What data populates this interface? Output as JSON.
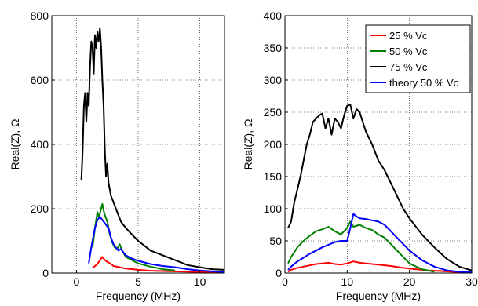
{
  "chart_data": [
    {
      "type": "line",
      "title": "",
      "xlabel": "Frequency (MHz)",
      "ylabel": "Real(Z), Ω",
      "xlim": [
        -2,
        12
      ],
      "ylim": [
        0,
        800
      ],
      "xticks": [
        0,
        5,
        10
      ],
      "yticks": [
        0,
        200,
        400,
        600,
        800
      ],
      "grid": true,
      "series": [
        {
          "color": "#ff0000",
          "x": [
            1.3,
            1.5,
            1.7,
            1.9,
            2.0,
            2.1,
            2.3,
            2.5,
            2.8,
            3.0,
            3.5,
            4.0,
            5.0,
            6.0,
            8.0,
            10.0,
            12.0
          ],
          "y": [
            15,
            22,
            28,
            40,
            45,
            50,
            40,
            35,
            28,
            22,
            18,
            14,
            10,
            7,
            5,
            3,
            2
          ]
        },
        {
          "color": "#008000",
          "x": [
            1.3,
            1.5,
            1.7,
            1.8,
            1.9,
            2.0,
            2.1,
            2.2,
            2.3,
            2.5,
            2.7,
            2.9,
            3.1,
            3.3,
            3.5,
            3.7,
            4.0,
            4.5,
            5.0,
            6.0,
            7.0,
            8.0
          ],
          "y": [
            80,
            140,
            190,
            175,
            185,
            200,
            215,
            195,
            180,
            160,
            120,
            95,
            80,
            75,
            90,
            70,
            50,
            40,
            30,
            20,
            12,
            8
          ]
        },
        {
          "color": "#000000",
          "x": [
            0.4,
            0.5,
            0.6,
            0.7,
            0.8,
            0.9,
            1.0,
            1.1,
            1.2,
            1.3,
            1.4,
            1.5,
            1.6,
            1.7,
            1.8,
            1.9,
            2.0,
            2.1,
            2.2,
            2.3,
            2.4,
            2.5,
            2.6,
            2.8,
            3.0,
            3.2,
            3.4,
            3.6,
            3.8,
            4.0,
            4.5,
            5.0,
            5.5,
            6.0,
            7.0,
            8.0,
            9.0,
            10.0,
            11.0,
            12.0
          ],
          "y": [
            290,
            380,
            520,
            560,
            470,
            560,
            520,
            640,
            720,
            700,
            620,
            740,
            700,
            750,
            720,
            760,
            700,
            600,
            520,
            380,
            300,
            340,
            280,
            240,
            220,
            200,
            180,
            160,
            150,
            140,
            120,
            100,
            85,
            70,
            55,
            40,
            25,
            18,
            12,
            10
          ]
        },
        {
          "color": "#0000ff",
          "x": [
            1.0,
            1.2,
            1.5,
            1.7,
            1.9,
            2.0,
            2.2,
            2.4,
            2.6,
            2.8,
            3.0,
            3.2,
            3.4,
            3.6,
            3.8,
            4.0,
            4.5,
            5.0,
            6.0,
            7.0,
            8.0,
            9.0,
            10.0,
            11.0,
            12.0
          ],
          "y": [
            30,
            80,
            140,
            165,
            175,
            170,
            160,
            150,
            140,
            110,
            90,
            80,
            70,
            75,
            65,
            55,
            45,
            38,
            28,
            22,
            18,
            12,
            8,
            5,
            3
          ]
        }
      ]
    },
    {
      "type": "line",
      "title": "",
      "xlabel": "Frequency (MHz)",
      "ylabel": "Real(Z), Ω",
      "xlim": [
        0,
        30
      ],
      "ylim": [
        0,
        400
      ],
      "xticks": [
        0,
        10,
        20,
        30
      ],
      "yticks": [
        0,
        50,
        100,
        150,
        200,
        250,
        300,
        350,
        400
      ],
      "grid": true,
      "legend": {
        "position": "top-right",
        "entries": [
          "25 % Vc",
          "50 % Vc",
          "75 % Vc",
          "theory 50 % Vc"
        ]
      },
      "series": [
        {
          "name": "25 % Vc",
          "color": "#ff0000",
          "x": [
            0.5,
            1,
            2,
            3,
            4,
            5,
            6,
            7,
            8,
            9,
            10,
            11,
            12,
            13,
            14,
            15,
            17,
            19,
            21,
            23,
            25,
            27,
            29,
            30
          ],
          "y": [
            2,
            5,
            8,
            10,
            12,
            14,
            15,
            16,
            14,
            13,
            15,
            18,
            16,
            15,
            14,
            13,
            11,
            8,
            6,
            4,
            3,
            2,
            1,
            1
          ]
        },
        {
          "name": "50 % Vc",
          "color": "#008000",
          "x": [
            0.5,
            1,
            2,
            3,
            4,
            5,
            6,
            7,
            8,
            9,
            10,
            10.5,
            11,
            12,
            13,
            14,
            15,
            16,
            17,
            18,
            19,
            20,
            22,
            24
          ],
          "y": [
            15,
            25,
            40,
            50,
            58,
            65,
            68,
            72,
            65,
            60,
            70,
            80,
            72,
            75,
            70,
            67,
            60,
            55,
            45,
            35,
            25,
            15,
            6,
            2
          ]
        },
        {
          "name": "75 % Vc",
          "color": "#000000",
          "x": [
            0.5,
            1,
            1.5,
            2,
            2.5,
            3,
            3.5,
            4,
            4.5,
            5,
            5.5,
            6,
            6.5,
            7,
            7.5,
            8,
            8.5,
            9,
            9.5,
            10,
            10.5,
            11,
            11.5,
            12,
            13,
            14,
            15,
            16,
            17,
            18,
            19,
            20,
            22,
            24,
            26,
            28,
            30
          ],
          "y": [
            70,
            80,
            110,
            130,
            150,
            175,
            200,
            215,
            235,
            240,
            245,
            248,
            225,
            240,
            215,
            240,
            235,
            225,
            245,
            260,
            262,
            240,
            255,
            250,
            220,
            200,
            175,
            160,
            140,
            120,
            100,
            85,
            60,
            40,
            22,
            10,
            4
          ]
        },
        {
          "name": "theory 50 % Vc",
          "color": "#0000ff",
          "x": [
            0.5,
            1,
            2,
            3,
            4,
            5,
            6,
            7,
            8,
            9,
            10,
            10.5,
            11,
            11.5,
            12,
            13,
            14,
            15,
            16,
            17,
            18,
            19,
            20,
            22,
            24,
            26,
            28,
            30
          ],
          "y": [
            5,
            10,
            18,
            24,
            30,
            35,
            40,
            44,
            48,
            50,
            50,
            70,
            92,
            88,
            85,
            84,
            82,
            80,
            75,
            65,
            55,
            45,
            35,
            20,
            10,
            4,
            2,
            1
          ]
        }
      ]
    }
  ]
}
